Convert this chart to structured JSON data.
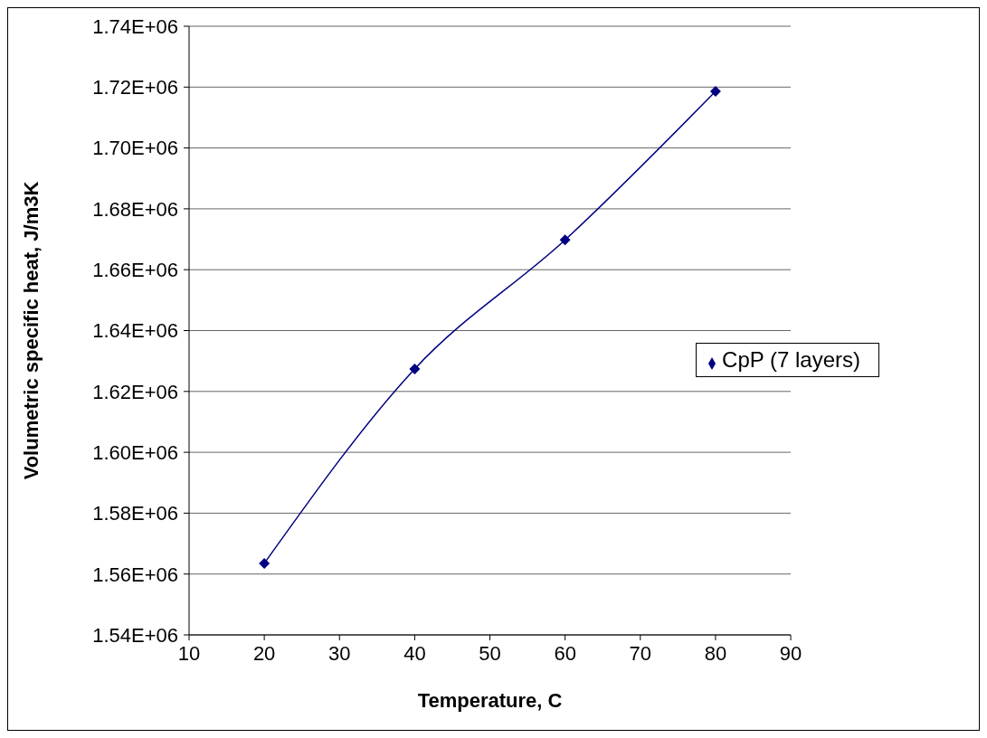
{
  "chart_data": {
    "type": "line",
    "xlabel": "Temperature, C",
    "ylabel": "Volumetric specific heat, J/m3K",
    "x": [
      20,
      40,
      60,
      80
    ],
    "series": [
      {
        "name": "CpP (7 layers)",
        "color": "#000080",
        "values": [
          1563500,
          1627400,
          1669800,
          1718600
        ]
      }
    ],
    "xlim": [
      10,
      90
    ],
    "xticks": [
      10,
      20,
      30,
      40,
      50,
      60,
      70,
      80,
      90
    ],
    "ylim": [
      1540000,
      1740000
    ],
    "yticks": [
      {
        "value": 1540000,
        "label": "1.54E+06"
      },
      {
        "value": 1560000,
        "label": "1.56E+06"
      },
      {
        "value": 1580000,
        "label": "1.58E+06"
      },
      {
        "value": 1600000,
        "label": "1.60E+06"
      },
      {
        "value": 1620000,
        "label": "1.62E+06"
      },
      {
        "value": 1640000,
        "label": "1.64E+06"
      },
      {
        "value": 1660000,
        "label": "1.66E+06"
      },
      {
        "value": 1680000,
        "label": "1.68E+06"
      },
      {
        "value": 1700000,
        "label": "1.70E+06"
      },
      {
        "value": 1720000,
        "label": "1.72E+06"
      },
      {
        "value": 1740000,
        "label": "1.74E+06"
      }
    ],
    "grid": "y",
    "legend": "right",
    "marker": "diamond",
    "line_style": "solid"
  }
}
